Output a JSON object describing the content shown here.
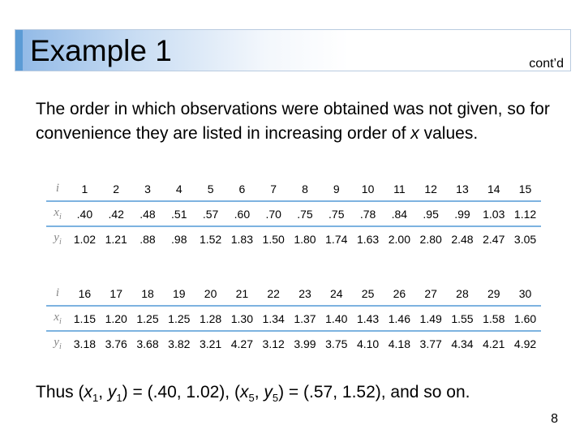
{
  "title": "Example 1",
  "contd": "cont’d",
  "intro": {
    "before_var": "The order in which observations were obtained was not given, so for convenience they are listed in increasing order of ",
    "var": "x",
    "after_var": " values."
  },
  "table1": {
    "labels": {
      "i": "i",
      "x": "x",
      "y": "y",
      "sub": "i"
    },
    "i": [
      "1",
      "2",
      "3",
      "4",
      "5",
      "6",
      "7",
      "8",
      "9",
      "10",
      "11",
      "12",
      "13",
      "14",
      "15"
    ],
    "x": [
      ".40",
      ".42",
      ".48",
      ".51",
      ".57",
      ".60",
      ".70",
      ".75",
      ".75",
      ".78",
      ".84",
      ".95",
      ".99",
      "1.03",
      "1.12"
    ],
    "y": [
      "1.02",
      "1.21",
      ".88",
      ".98",
      "1.52",
      "1.83",
      "1.50",
      "1.80",
      "1.74",
      "1.63",
      "2.00",
      "2.80",
      "2.48",
      "2.47",
      "3.05"
    ]
  },
  "table2": {
    "labels": {
      "i": "i",
      "x": "x",
      "y": "y",
      "sub": "i"
    },
    "i": [
      "16",
      "17",
      "18",
      "19",
      "20",
      "21",
      "22",
      "23",
      "24",
      "25",
      "26",
      "27",
      "28",
      "29",
      "30"
    ],
    "x": [
      "1.15",
      "1.20",
      "1.25",
      "1.25",
      "1.28",
      "1.30",
      "1.34",
      "1.37",
      "1.40",
      "1.43",
      "1.46",
      "1.49",
      "1.55",
      "1.58",
      "1.60"
    ],
    "y": [
      "3.18",
      "3.76",
      "3.68",
      "3.82",
      "3.21",
      "4.27",
      "3.12",
      "3.99",
      "3.75",
      "4.10",
      "4.18",
      "3.77",
      "4.34",
      "4.21",
      "4.92"
    ]
  },
  "thus": {
    "p1": "Thus (",
    "x": "x",
    "s1": "1",
    "comma": ", ",
    "y": "y",
    "s1b": "1",
    "p2": ") = (.40, 1.02), (",
    "x5": "x",
    "s5": "5",
    "comma2": ", ",
    "y5": "y",
    "s5b": "5",
    "p3": ") = (.57, 1.52), and so on."
  },
  "page_number": "8"
}
